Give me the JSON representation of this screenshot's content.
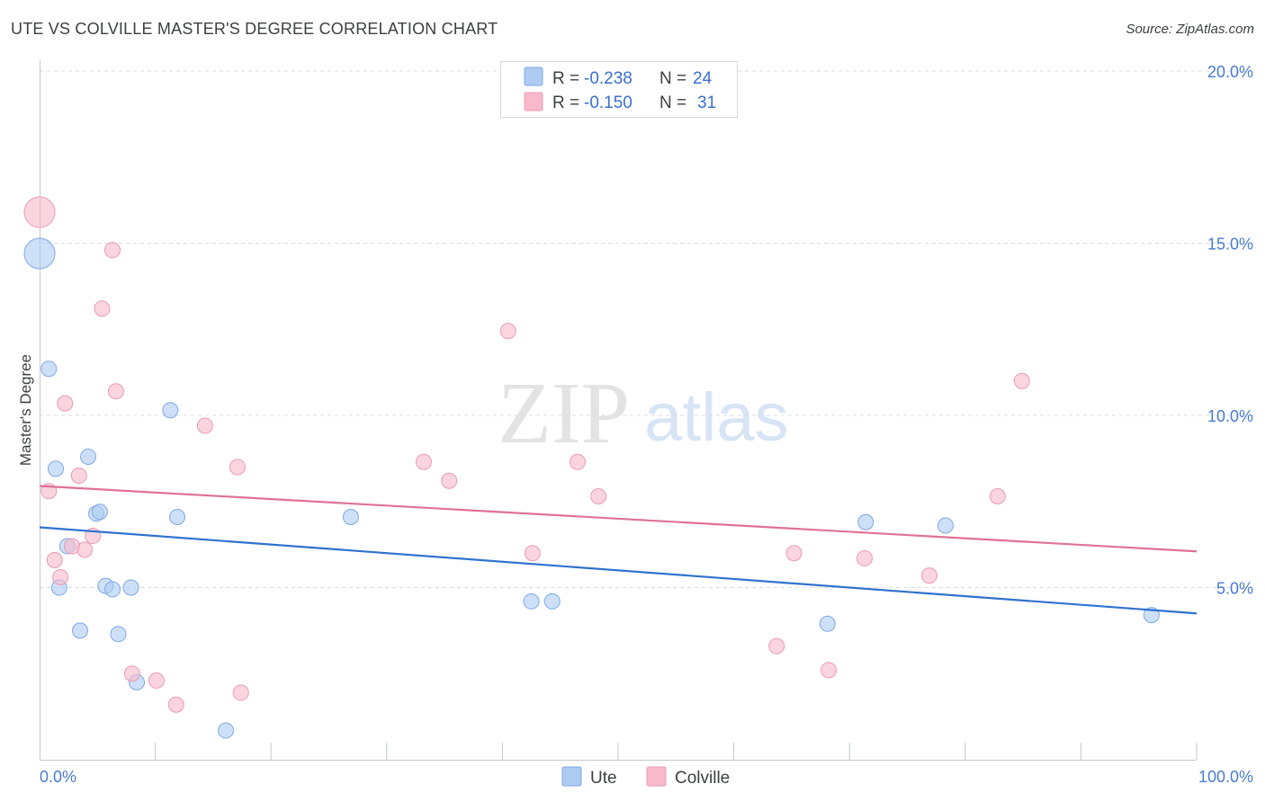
{
  "header": {
    "title": "UTE VS COLVILLE MASTER'S DEGREE CORRELATION CHART",
    "source": "Source: ZipAtlas.com"
  },
  "watermark": {
    "zip": "ZIP",
    "atlas": "atlas"
  },
  "legend": {
    "r_label": "R =",
    "n_label": "N =",
    "ute": {
      "r": "-0.238",
      "n": "24"
    },
    "colville": {
      "r": "-0.150",
      "n": "31"
    }
  },
  "colors": {
    "ute_fill": "#aecbf2",
    "ute_stroke": "#7ea8e6",
    "ute_line": "#2f72d0",
    "colville_fill": "#f7b9cb",
    "colville_stroke": "#ec9ab3",
    "colville_line": "#e0709a",
    "grid": "#d8dce3",
    "axis_text": "#4a7bd0"
  },
  "chart_data": {
    "type": "scatter",
    "title": "UTE VS COLVILLE MASTER'S DEGREE CORRELATION CHART",
    "xlabel": "",
    "ylabel": "Master's Degree",
    "xlim": [
      0,
      100
    ],
    "ylim": [
      0,
      20.5
    ],
    "x_tick_labels": [
      "0.0%",
      "100.0%"
    ],
    "y_ticks": [
      5,
      10,
      15,
      20
    ],
    "y_tick_labels": [
      "5.0%",
      "10.0%",
      "15.0%",
      "20.0%"
    ],
    "grid": true,
    "legend_position": "bottom-center",
    "series": [
      {
        "name": "Ute",
        "r": -0.238,
        "n": 24,
        "trend": {
          "x": [
            0,
            100
          ],
          "y": [
            6.75,
            4.25
          ]
        },
        "points": [
          {
            "x": 0.0,
            "y": 14.7,
            "size": "large"
          },
          {
            "x": 0.8,
            "y": 11.35
          },
          {
            "x": 1.4,
            "y": 8.45
          },
          {
            "x": 1.7,
            "y": 5.0
          },
          {
            "x": 2.4,
            "y": 6.2
          },
          {
            "x": 3.5,
            "y": 3.75
          },
          {
            "x": 4.2,
            "y": 8.8
          },
          {
            "x": 4.9,
            "y": 7.15
          },
          {
            "x": 5.2,
            "y": 7.2
          },
          {
            "x": 5.7,
            "y": 5.05
          },
          {
            "x": 6.3,
            "y": 4.95
          },
          {
            "x": 6.8,
            "y": 3.65
          },
          {
            "x": 7.9,
            "y": 5.0
          },
          {
            "x": 8.4,
            "y": 2.25
          },
          {
            "x": 11.3,
            "y": 10.15
          },
          {
            "x": 11.9,
            "y": 7.05
          },
          {
            "x": 16.1,
            "y": 0.85
          },
          {
            "x": 26.9,
            "y": 7.05
          },
          {
            "x": 42.5,
            "y": 4.6
          },
          {
            "x": 44.3,
            "y": 4.6
          },
          {
            "x": 68.1,
            "y": 3.95
          },
          {
            "x": 71.4,
            "y": 6.9
          },
          {
            "x": 78.3,
            "y": 6.8
          },
          {
            "x": 96.1,
            "y": 4.2
          }
        ]
      },
      {
        "name": "Colville",
        "r": -0.15,
        "n": 31,
        "trend": {
          "x": [
            0,
            100
          ],
          "y": [
            7.95,
            6.05
          ]
        },
        "points": [
          {
            "x": 0.0,
            "y": 15.9,
            "size": "large"
          },
          {
            "x": 0.8,
            "y": 7.8
          },
          {
            "x": 1.3,
            "y": 5.8
          },
          {
            "x": 1.8,
            "y": 5.3
          },
          {
            "x": 2.2,
            "y": 10.35
          },
          {
            "x": 2.8,
            "y": 6.2
          },
          {
            "x": 3.4,
            "y": 8.25
          },
          {
            "x": 3.9,
            "y": 6.1
          },
          {
            "x": 4.6,
            "y": 6.5
          },
          {
            "x": 5.4,
            "y": 13.1
          },
          {
            "x": 6.3,
            "y": 14.8
          },
          {
            "x": 6.6,
            "y": 10.7
          },
          {
            "x": 8.0,
            "y": 2.5
          },
          {
            "x": 10.1,
            "y": 2.3
          },
          {
            "x": 11.8,
            "y": 1.6
          },
          {
            "x": 14.3,
            "y": 9.7
          },
          {
            "x": 17.1,
            "y": 8.5
          },
          {
            "x": 17.4,
            "y": 1.95
          },
          {
            "x": 33.2,
            "y": 8.65
          },
          {
            "x": 35.4,
            "y": 8.1
          },
          {
            "x": 40.5,
            "y": 12.45
          },
          {
            "x": 42.6,
            "y": 6.0
          },
          {
            "x": 46.5,
            "y": 8.65
          },
          {
            "x": 48.3,
            "y": 7.65
          },
          {
            "x": 63.7,
            "y": 3.3
          },
          {
            "x": 65.2,
            "y": 6.0
          },
          {
            "x": 68.2,
            "y": 2.6
          },
          {
            "x": 71.3,
            "y": 5.85
          },
          {
            "x": 76.9,
            "y": 5.35
          },
          {
            "x": 82.8,
            "y": 7.65
          },
          {
            "x": 84.9,
            "y": 11.0
          }
        ]
      }
    ]
  }
}
